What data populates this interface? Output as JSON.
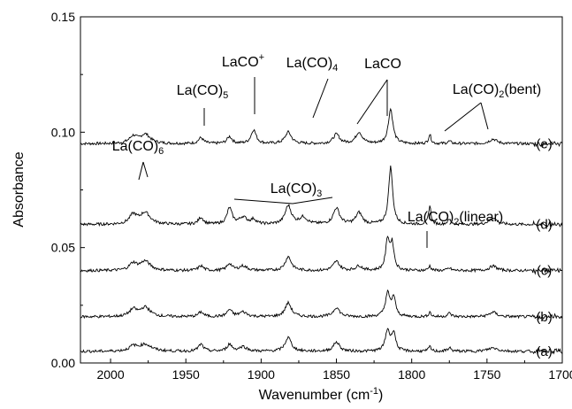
{
  "chart_data": {
    "type": "line",
    "xlabel_main": "Wavenumber (cm",
    "xlabel_sup": "-1",
    "xlabel_close": ")",
    "ylabel": "Absorbance",
    "xlim": [
      2020,
      1700
    ],
    "ylim": [
      0.0,
      0.15
    ],
    "x_ticks": [
      2000,
      1950,
      1900,
      1850,
      1800,
      1750,
      1700
    ],
    "y_ticks": [
      {
        "value": 0.0,
        "label": "0.00"
      },
      {
        "value": 0.05,
        "label": "0.05"
      },
      {
        "value": 0.1,
        "label": "0.10"
      },
      {
        "value": 0.15,
        "label": "0.15"
      }
    ],
    "grid": false,
    "series": [
      {
        "name": "(e)",
        "baseline": 0.095,
        "peaks": [
          [
            1985,
            0.003,
            3
          ],
          [
            1977,
            0.004,
            4
          ],
          [
            1940,
            0.0025,
            2
          ],
          [
            1921,
            0.003,
            2
          ],
          [
            1905,
            0.006,
            2
          ],
          [
            1882,
            0.005,
            2.5
          ],
          [
            1850,
            0.004,
            2.5
          ],
          [
            1835,
            0.005,
            2.5
          ],
          [
            1814,
            0.015,
            1.8
          ],
          [
            1788,
            0.004,
            1
          ],
          [
            1775,
            0.001,
            1.5
          ],
          [
            1746,
            0.002,
            3
          ]
        ]
      },
      {
        "name": "(d)",
        "baseline": 0.06,
        "peaks": [
          [
            1985,
            0.004,
            3
          ],
          [
            1977,
            0.005,
            4
          ],
          [
            1940,
            0.003,
            2
          ],
          [
            1921,
            0.007,
            2
          ],
          [
            1912,
            0.003,
            3
          ],
          [
            1905,
            0.002,
            2
          ],
          [
            1882,
            0.008,
            2.5
          ],
          [
            1872,
            0.003,
            3
          ],
          [
            1850,
            0.007,
            2.5
          ],
          [
            1835,
            0.005,
            2.5
          ],
          [
            1814,
            0.025,
            1.6
          ],
          [
            1788,
            0.008,
            1
          ],
          [
            1775,
            0.002,
            1.5
          ],
          [
            1746,
            0.003,
            3
          ]
        ]
      },
      {
        "name": "(c)",
        "baseline": 0.04,
        "peaks": [
          [
            1985,
            0.003,
            3
          ],
          [
            1977,
            0.004,
            4
          ],
          [
            1940,
            0.002,
            2
          ],
          [
            1921,
            0.003,
            2
          ],
          [
            1912,
            0.002,
            3
          ],
          [
            1882,
            0.006,
            2.5
          ],
          [
            1850,
            0.004,
            2.5
          ],
          [
            1835,
            0.002,
            2.5
          ],
          [
            1816,
            0.013,
            1.5
          ],
          [
            1813,
            0.011,
            1.5
          ],
          [
            1788,
            0.002,
            1
          ],
          [
            1775,
            0.001,
            1.5
          ],
          [
            1746,
            0.002,
            3
          ]
        ]
      },
      {
        "name": "(b)",
        "baseline": 0.02,
        "peaks": [
          [
            1985,
            0.003,
            3
          ],
          [
            1977,
            0.004,
            4
          ],
          [
            1940,
            0.002,
            2
          ],
          [
            1921,
            0.003,
            2
          ],
          [
            1912,
            0.002,
            3
          ],
          [
            1882,
            0.006,
            2.5
          ],
          [
            1850,
            0.004,
            2.5
          ],
          [
            1816,
            0.01,
            1.8
          ],
          [
            1812,
            0.008,
            1.5
          ],
          [
            1788,
            0.002,
            1
          ],
          [
            1775,
            0.0015,
            1.5
          ],
          [
            1746,
            0.002,
            3
          ]
        ]
      },
      {
        "name": "(a)",
        "baseline": 0.005,
        "peaks": [
          [
            1985,
            0.002,
            3
          ],
          [
            1977,
            0.003,
            5
          ],
          [
            1940,
            0.003,
            2
          ],
          [
            1921,
            0.003,
            2
          ],
          [
            1912,
            0.002,
            3
          ],
          [
            1882,
            0.006,
            2.5
          ],
          [
            1850,
            0.004,
            2.5
          ],
          [
            1816,
            0.009,
            1.8
          ],
          [
            1812,
            0.008,
            1.5
          ],
          [
            1788,
            0.002,
            1
          ],
          [
            1775,
            0.0015,
            1.5
          ],
          [
            1746,
            0.0015,
            4
          ]
        ]
      }
    ],
    "annotations": [
      {
        "main": "La(CO)",
        "sub": "6",
        "sup": "",
        "tail": ""
      },
      {
        "main": "La(CO)",
        "sub": "5",
        "sup": "",
        "tail": ""
      },
      {
        "main": "LaCO",
        "sub": "",
        "sup": "+",
        "tail": ""
      },
      {
        "main": "La(CO)",
        "sub": "4",
        "sup": "",
        "tail": ""
      },
      {
        "main": "LaCO",
        "sub": "",
        "sup": "",
        "tail": ""
      },
      {
        "main": "La(CO)",
        "sub": "2",
        "sup": "",
        "tail": "(bent)"
      },
      {
        "main": "La(CO)",
        "sub": "3",
        "sup": "",
        "tail": ""
      },
      {
        "main": "La(CO)",
        "sub": "2",
        "sup": "",
        "tail": "(linear)"
      }
    ]
  }
}
